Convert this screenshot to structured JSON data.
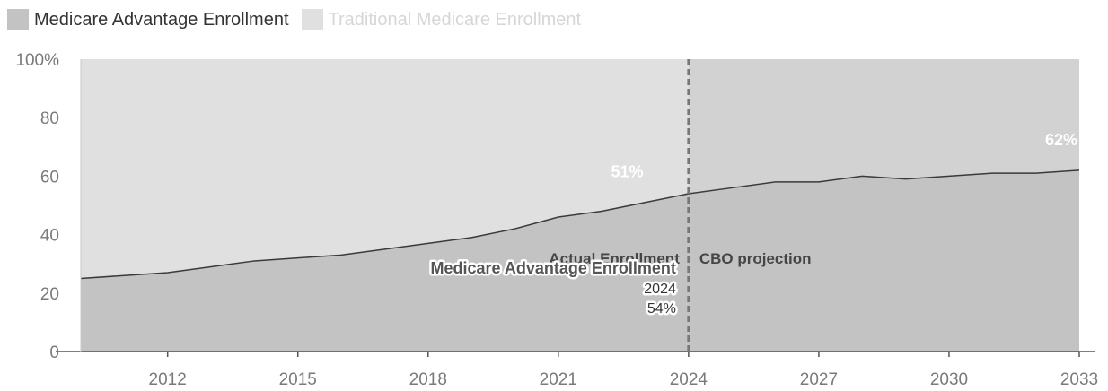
{
  "chart_data": {
    "type": "area",
    "stacking": "percent",
    "x": [
      2010,
      2011,
      2012,
      2013,
      2014,
      2015,
      2016,
      2017,
      2018,
      2019,
      2020,
      2021,
      2022,
      2023,
      2024,
      2025,
      2026,
      2027,
      2028,
      2029,
      2030,
      2031,
      2032,
      2033
    ],
    "series": [
      {
        "name": "Medicare Advantage Enrollment",
        "color": "#c3c3c3",
        "values": [
          25,
          26,
          27,
          29,
          31,
          32,
          33,
          35,
          37,
          39,
          42,
          46,
          48,
          51,
          54,
          56,
          58,
          58,
          60,
          59,
          60,
          61,
          61,
          62
        ]
      },
      {
        "name": "Traditional Medicare Enrollment",
        "color": "#e0e0e0",
        "values": [
          75,
          74,
          73,
          71,
          69,
          68,
          67,
          65,
          63,
          61,
          58,
          54,
          52,
          49,
          46,
          44,
          42,
          42,
          40,
          41,
          40,
          39,
          39,
          38
        ]
      }
    ],
    "xlim": [
      2010,
      2033
    ],
    "ylim": [
      0,
      100
    ],
    "x_ticks": [
      2012,
      2015,
      2018,
      2021,
      2024,
      2027,
      2030,
      2033
    ],
    "y_ticks": [
      0,
      20,
      40,
      60,
      80,
      100
    ],
    "y_tick_labels": [
      "0",
      "20",
      "40",
      "60",
      "80",
      "100%"
    ],
    "legend_position": "top-left",
    "grid": false,
    "projection_line": 2024,
    "projection_left_label": "Actual Enrollment",
    "projection_right_label": "CBO projection",
    "point_labels": [
      {
        "x": 2023,
        "value": 51,
        "text": "51%"
      },
      {
        "x": 2033,
        "value": 62,
        "text": "62%"
      }
    ],
    "tooltip": {
      "series": "Medicare Advantage Enrollment",
      "x_label": "2024",
      "value_label": "54%"
    },
    "colors": {
      "projection_area": "#d2d2d2",
      "line": "#3a3a3a",
      "axis": "#555555",
      "tick_text": "#7a7a7a",
      "divider": "#777777"
    }
  }
}
